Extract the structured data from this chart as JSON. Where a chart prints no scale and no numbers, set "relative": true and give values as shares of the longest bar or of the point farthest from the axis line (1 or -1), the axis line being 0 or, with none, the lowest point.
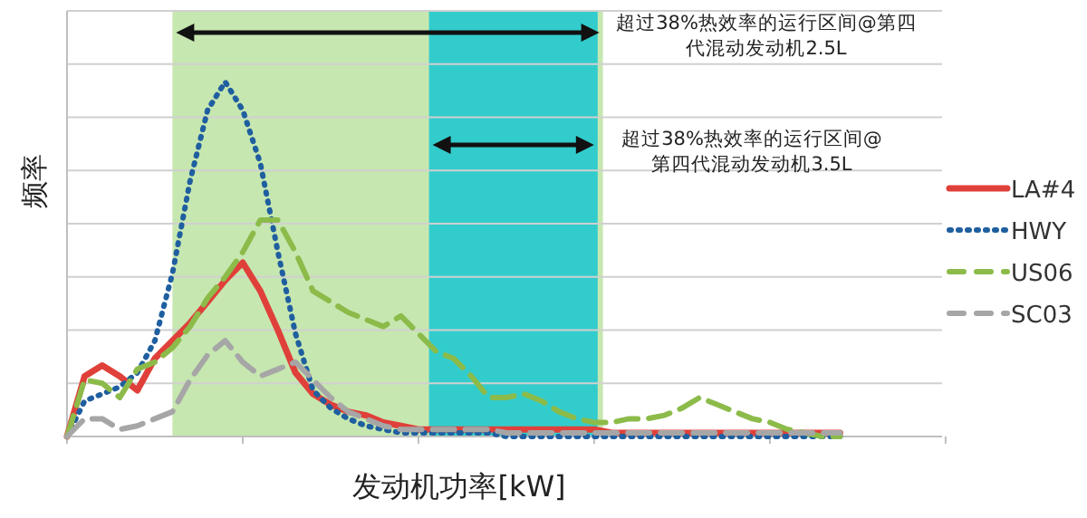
{
  "chart_data": {
    "type": "line",
    "relative": true,
    "xlabel": "发动机功率[kW]",
    "ylabel": "频率",
    "grid": "y",
    "legend": "right",
    "categories": [
      null,
      null,
      null,
      null,
      null,
      null,
      null,
      null,
      null,
      null,
      null,
      null,
      null,
      null,
      null,
      null,
      null,
      null,
      null,
      null,
      null,
      null,
      null,
      null,
      null,
      null,
      null,
      null,
      null,
      null,
      null,
      null,
      null,
      null,
      null,
      null,
      null,
      null,
      null,
      null,
      null,
      null,
      null,
      null,
      null
    ],
    "series": [
      {
        "name": "LA#4",
        "color": "#e0403a",
        "line_style": "solid",
        "values": [
          0,
          0.17,
          0.2,
          0.17,
          0.13,
          0.22,
          0.27,
          0.32,
          0.38,
          0.44,
          0.49,
          0.41,
          0.3,
          0.18,
          0.12,
          0.09,
          0.07,
          0.06,
          0.04,
          0.03,
          0.02,
          0.02,
          0.02,
          0.02,
          0.02,
          0.02,
          0.02,
          0.02,
          0.02,
          0.02,
          0.02,
          0.01,
          0.01,
          0.01,
          0.01,
          0.01,
          0.01,
          0.01,
          0.01,
          0.01,
          0.01,
          0.01,
          0.01,
          0.01,
          0.01
        ]
      },
      {
        "name": "HWY",
        "color": "#1f5fa0",
        "line_style": "dotted",
        "values": [
          0,
          0.1,
          0.12,
          0.14,
          0.18,
          0.27,
          0.46,
          0.72,
          0.92,
          1,
          0.92,
          0.77,
          0.52,
          0.29,
          0.13,
          0.08,
          0.05,
          0.03,
          0.02,
          0.01,
          0.01,
          0.01,
          0.01,
          0.01,
          0.01,
          0,
          0,
          0,
          0,
          0,
          0,
          0,
          0,
          0,
          0,
          0,
          0,
          0,
          0,
          0,
          0,
          0,
          0,
          0,
          0
        ]
      },
      {
        "name": "US06",
        "color": "#8cbb4a",
        "line_style": "dashed",
        "values": [
          0,
          0.16,
          0.15,
          0.11,
          0.19,
          0.21,
          0.25,
          0.31,
          0.39,
          0.45,
          0.52,
          0.61,
          0.61,
          0.52,
          0.41,
          0.38,
          0.35,
          0.33,
          0.31,
          0.34,
          0.29,
          0.24,
          0.22,
          0.17,
          0.11,
          0.11,
          0.12,
          0.1,
          0.07,
          0.05,
          0.04,
          0.04,
          0.05,
          0.05,
          0.06,
          0.08,
          0.11,
          0.09,
          0.07,
          0.05,
          0.04,
          0.02,
          0.01,
          0,
          0
        ]
      },
      {
        "name": "SC03",
        "color": "#a6a6a6",
        "line_style": "dashed",
        "values": [
          0,
          0.05,
          0.05,
          0.02,
          0.03,
          0.05,
          0.07,
          0.16,
          0.23,
          0.27,
          0.21,
          0.17,
          0.19,
          0.21,
          0.16,
          0.11,
          0.07,
          0.05,
          0.03,
          0.02,
          0.02,
          0.02,
          0.02,
          0.02,
          0.02,
          0.01,
          0.01,
          0.01,
          0.01,
          0.01,
          0.01,
          0.01,
          0.01,
          0.01,
          0.01,
          0.01,
          0.01,
          0.01,
          0.01,
          0.01,
          0.01,
          0.01,
          0.01,
          0.01,
          0.01
        ]
      }
    ],
    "annotations": [
      "超过38%热效率的运行区间@第四代混动发动机2.5L",
      "超过38%热效率的运行区间@第四代混动发动机3.5L"
    ]
  }
}
